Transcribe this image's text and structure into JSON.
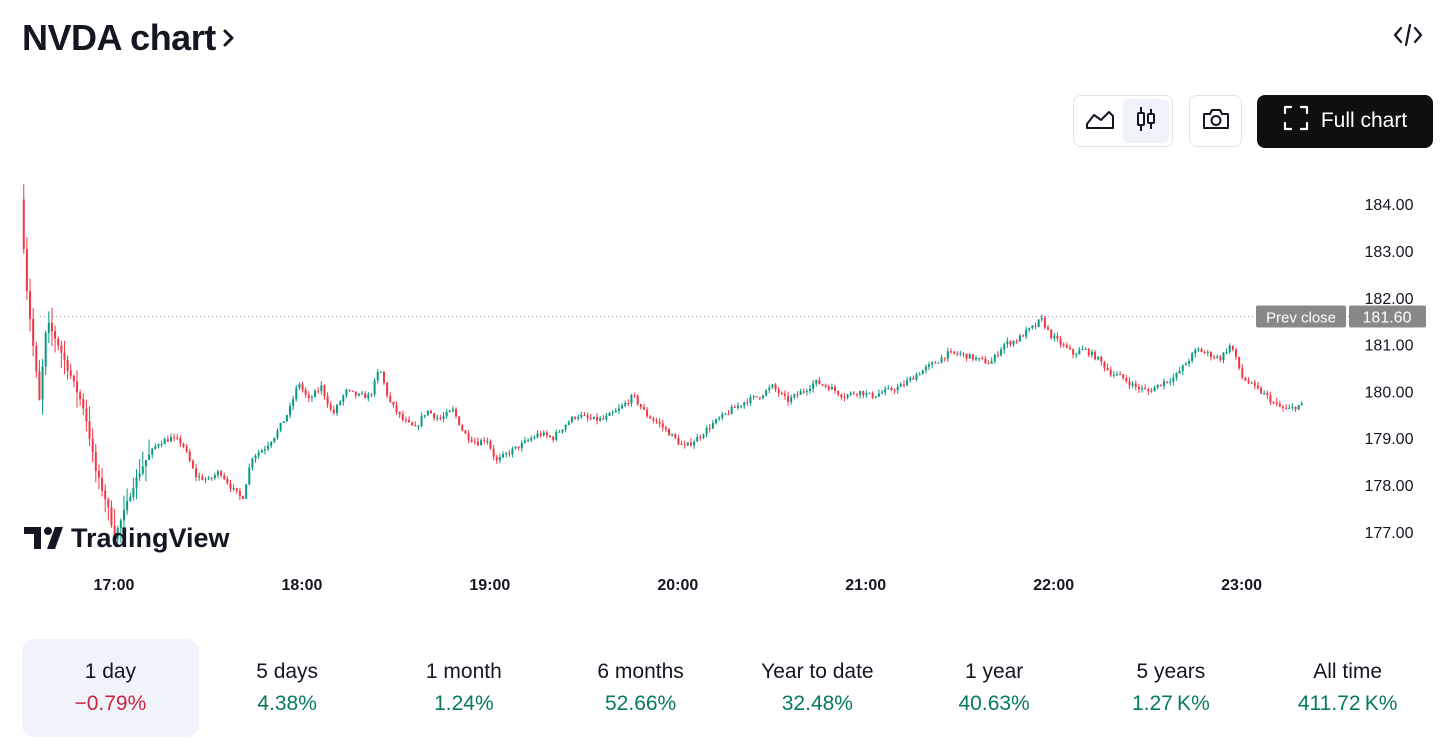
{
  "header": {
    "title": "NVDA chart"
  },
  "toolbar": {
    "buttons": [
      {
        "icon": "area-chart-icon",
        "active": false
      },
      {
        "icon": "candlestick-chart-icon",
        "active": true
      },
      {
        "icon": "camera-icon",
        "active": false
      }
    ],
    "full_chart_label": "Full chart"
  },
  "watermark": {
    "logo_text": "TradingView"
  },
  "colors": {
    "up": "#089981",
    "down": "#f23645",
    "negative_text": "#c9263e",
    "positive_text": "#067a5e",
    "prev_close_label_bg": "#888888",
    "text": "#131722"
  },
  "chart_data": {
    "type": "candlestick",
    "x_unit": "time of day (hours)",
    "y_unit": "price (USD)",
    "ylim": [
      176.4,
      184.6
    ],
    "xlim": [
      16.5,
      23.55
    ],
    "y_ticks": [
      "184.00",
      "183.00",
      "182.00",
      "181.00",
      "180.00",
      "179.00",
      "178.00",
      "177.00"
    ],
    "y_tick_values": [
      184,
      183,
      182,
      181,
      180,
      179,
      178,
      177
    ],
    "x_ticks": [
      "17:00",
      "18:00",
      "19:00",
      "20:00",
      "21:00",
      "22:00",
      "23:00"
    ],
    "x_tick_values": [
      17,
      18,
      19,
      20,
      21,
      22,
      23
    ],
    "prev_close": {
      "label": "Prev close",
      "value": 181.6,
      "value_label": "181.60"
    },
    "grid": false,
    "candle_interval_minutes": 1,
    "path": [
      [
        16.52,
        184.1
      ],
      [
        16.55,
        182.3
      ],
      [
        16.58,
        181.2
      ],
      [
        16.62,
        179.8
      ],
      [
        16.66,
        181.5
      ],
      [
        16.72,
        181.0
      ],
      [
        16.8,
        180.2
      ],
      [
        16.86,
        179.6
      ],
      [
        16.92,
        178.3
      ],
      [
        16.98,
        177.6
      ],
      [
        17.02,
        176.9
      ],
      [
        17.06,
        177.3
      ],
      [
        17.12,
        178.0
      ],
      [
        17.18,
        178.5
      ],
      [
        17.25,
        178.9
      ],
      [
        17.32,
        179.0
      ],
      [
        17.38,
        178.9
      ],
      [
        17.45,
        178.2
      ],
      [
        17.52,
        178.1
      ],
      [
        17.58,
        178.3
      ],
      [
        17.65,
        177.9
      ],
      [
        17.7,
        177.7
      ],
      [
        17.75,
        178.6
      ],
      [
        17.82,
        178.8
      ],
      [
        17.88,
        179.1
      ],
      [
        17.95,
        179.6
      ],
      [
        18.0,
        180.2
      ],
      [
        18.05,
        179.8
      ],
      [
        18.12,
        180.1
      ],
      [
        18.18,
        179.5
      ],
      [
        18.25,
        180.0
      ],
      [
        18.32,
        179.9
      ],
      [
        18.38,
        179.9
      ],
      [
        18.43,
        180.5
      ],
      [
        18.48,
        179.8
      ],
      [
        18.55,
        179.4
      ],
      [
        18.62,
        179.2
      ],
      [
        18.68,
        179.6
      ],
      [
        18.75,
        179.4
      ],
      [
        18.82,
        179.6
      ],
      [
        18.88,
        179.1
      ],
      [
        18.95,
        178.9
      ],
      [
        19.0,
        179.0
      ],
      [
        19.05,
        178.5
      ],
      [
        19.12,
        178.7
      ],
      [
        19.2,
        178.9
      ],
      [
        19.28,
        179.1
      ],
      [
        19.35,
        179.0
      ],
      [
        19.42,
        179.3
      ],
      [
        19.48,
        179.5
      ],
      [
        19.55,
        179.4
      ],
      [
        19.62,
        179.4
      ],
      [
        19.7,
        179.6
      ],
      [
        19.78,
        179.9
      ],
      [
        19.85,
        179.5
      ],
      [
        19.92,
        179.3
      ],
      [
        20.0,
        179.0
      ],
      [
        20.05,
        178.8
      ],
      [
        20.12,
        179.0
      ],
      [
        20.2,
        179.3
      ],
      [
        20.3,
        179.6
      ],
      [
        20.38,
        179.8
      ],
      [
        20.45,
        179.9
      ],
      [
        20.52,
        180.1
      ],
      [
        20.6,
        179.8
      ],
      [
        20.68,
        180.0
      ],
      [
        20.75,
        180.2
      ],
      [
        20.82,
        180.1
      ],
      [
        20.9,
        179.9
      ],
      [
        20.98,
        180.0
      ],
      [
        21.05,
        179.9
      ],
      [
        21.12,
        180.0
      ],
      [
        21.2,
        180.1
      ],
      [
        21.3,
        180.4
      ],
      [
        21.38,
        180.6
      ],
      [
        21.45,
        180.8
      ],
      [
        21.52,
        180.8
      ],
      [
        21.6,
        180.7
      ],
      [
        21.68,
        180.6
      ],
      [
        21.75,
        181.0
      ],
      [
        21.82,
        181.1
      ],
      [
        21.88,
        181.3
      ],
      [
        21.92,
        181.4
      ],
      [
        21.95,
        181.55
      ],
      [
        22.0,
        181.2
      ],
      [
        22.06,
        181.0
      ],
      [
        22.12,
        180.8
      ],
      [
        22.18,
        180.9
      ],
      [
        22.25,
        180.7
      ],
      [
        22.32,
        180.4
      ],
      [
        22.38,
        180.3
      ],
      [
        22.45,
        180.1
      ],
      [
        22.52,
        180.0
      ],
      [
        22.6,
        180.2
      ],
      [
        22.66,
        180.3
      ],
      [
        22.72,
        180.6
      ],
      [
        22.78,
        180.9
      ],
      [
        22.84,
        180.8
      ],
      [
        22.9,
        180.7
      ],
      [
        22.96,
        181.0
      ],
      [
        23.02,
        180.3
      ],
      [
        23.08,
        180.1
      ],
      [
        23.15,
        179.9
      ],
      [
        23.2,
        179.7
      ],
      [
        23.26,
        179.6
      ],
      [
        23.32,
        179.7
      ]
    ]
  },
  "periods": [
    {
      "label": "1 day",
      "value": "−0.79%",
      "trend": "neg",
      "active": true
    },
    {
      "label": "5 days",
      "value": "4.38%",
      "trend": "pos",
      "active": false
    },
    {
      "label": "1 month",
      "value": "1.24%",
      "trend": "pos",
      "active": false
    },
    {
      "label": "6 months",
      "value": "52.66%",
      "trend": "pos",
      "active": false
    },
    {
      "label": "Year to date",
      "value": "32.48%",
      "trend": "pos",
      "active": false
    },
    {
      "label": "1 year",
      "value": "40.63%",
      "trend": "pos",
      "active": false
    },
    {
      "label": "5 years",
      "value": "1.27 K%",
      "trend": "pos",
      "active": false
    },
    {
      "label": "All time",
      "value": "411.72 K%",
      "trend": "pos",
      "active": false
    }
  ]
}
